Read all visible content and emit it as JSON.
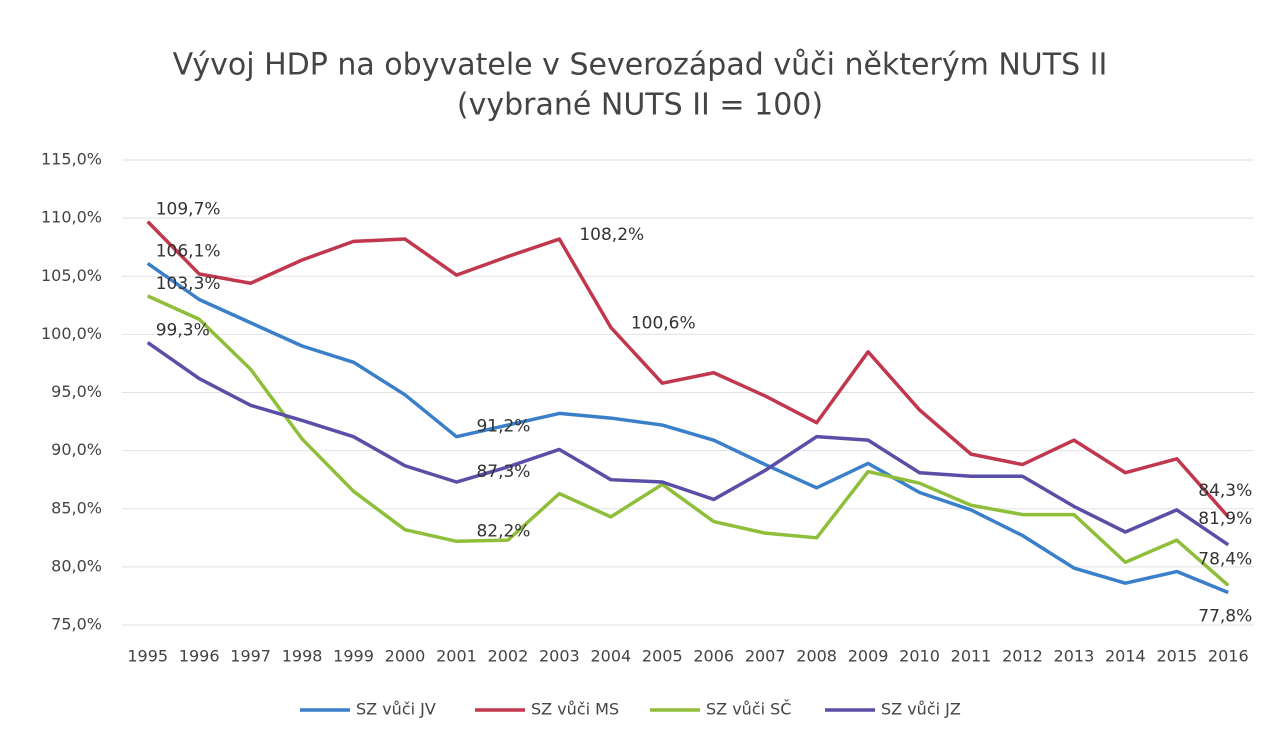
{
  "chart_data": {
    "type": "line",
    "title": "Vývoj HDP na obyvatele v Severozápad vůči některým NUTS II",
    "subtitle": "(vybrané NUTS II = 100)",
    "categories": [
      "1995",
      "1996",
      "1997",
      "1998",
      "1999",
      "2000",
      "2001",
      "2002",
      "2003",
      "2004",
      "2005",
      "2006",
      "2007",
      "2008",
      "2009",
      "2010",
      "2011",
      "2012",
      "2013",
      "2014",
      "2015",
      "2016"
    ],
    "ylim": [
      75,
      115
    ],
    "yticks": [
      {
        "value": 75,
        "label": "75,0%"
      },
      {
        "value": 80,
        "label": "80,0%"
      },
      {
        "value": 85,
        "label": "85,0%"
      },
      {
        "value": 90,
        "label": "90,0%"
      },
      {
        "value": 95,
        "label": "95,0%"
      },
      {
        "value": 100,
        "label": "100,0%"
      },
      {
        "value": 105,
        "label": "105,0%"
      },
      {
        "value": 110,
        "label": "110,0%"
      },
      {
        "value": 115,
        "label": "115,0%"
      }
    ],
    "grid": true,
    "legend": "bottom",
    "series": [
      {
        "name": "SZ vůči JV",
        "color": "#3a7fc9",
        "values": [
          106.1,
          103.0,
          101.0,
          99.0,
          97.6,
          94.8,
          91.2,
          92.2,
          93.2,
          92.8,
          92.2,
          90.9,
          88.8,
          86.8,
          88.9,
          86.4,
          84.9,
          82.7,
          79.9,
          78.6,
          79.6,
          77.8
        ],
        "value_labels": [
          "106,1%",
          null,
          null,
          null,
          null,
          null,
          "91,2%",
          null,
          null,
          null,
          null,
          null,
          null,
          null,
          null,
          null,
          null,
          null,
          null,
          null,
          null,
          "77,8%"
        ]
      },
      {
        "name": "SZ vůči MS",
        "color": "#c0374e",
        "values": [
          109.7,
          105.2,
          104.4,
          106.4,
          108.0,
          108.2,
          105.1,
          106.7,
          108.2,
          100.6,
          95.8,
          96.7,
          94.7,
          92.4,
          98.5,
          93.5,
          89.7,
          88.8,
          90.9,
          88.1,
          89.3,
          84.3
        ],
        "value_labels": [
          "109,7%",
          null,
          null,
          null,
          null,
          null,
          null,
          null,
          "108,2%",
          "100,6%",
          null,
          null,
          null,
          null,
          null,
          null,
          null,
          null,
          null,
          null,
          null,
          "84,3%"
        ]
      },
      {
        "name": "SZ vůči SČ",
        "color": "#8fbf3a",
        "values": [
          103.3,
          101.3,
          97.0,
          91.0,
          86.5,
          83.2,
          82.2,
          82.3,
          86.3,
          84.3,
          87.1,
          83.9,
          82.9,
          82.5,
          88.2,
          87.2,
          85.3,
          84.5,
          84.5,
          80.4,
          82.3,
          78.4
        ],
        "value_labels": [
          "103,3%",
          null,
          null,
          null,
          null,
          null,
          "82,2%",
          null,
          null,
          null,
          null,
          null,
          null,
          null,
          null,
          null,
          null,
          null,
          null,
          null,
          null,
          "78,4%"
        ]
      },
      {
        "name": "SZ vůči JZ",
        "color": "#5a4fa6",
        "values": [
          99.3,
          96.2,
          93.9,
          92.6,
          91.2,
          88.7,
          87.3,
          88.6,
          90.1,
          87.5,
          87.3,
          85.8,
          88.3,
          91.2,
          90.9,
          88.1,
          87.8,
          87.8,
          85.2,
          83.0,
          84.9,
          81.9
        ],
        "value_labels": [
          "99,3%",
          null,
          null,
          null,
          null,
          null,
          "87,3%",
          null,
          null,
          null,
          null,
          null,
          null,
          null,
          null,
          null,
          null,
          null,
          null,
          null,
          null,
          "81,9%"
        ]
      }
    ]
  }
}
